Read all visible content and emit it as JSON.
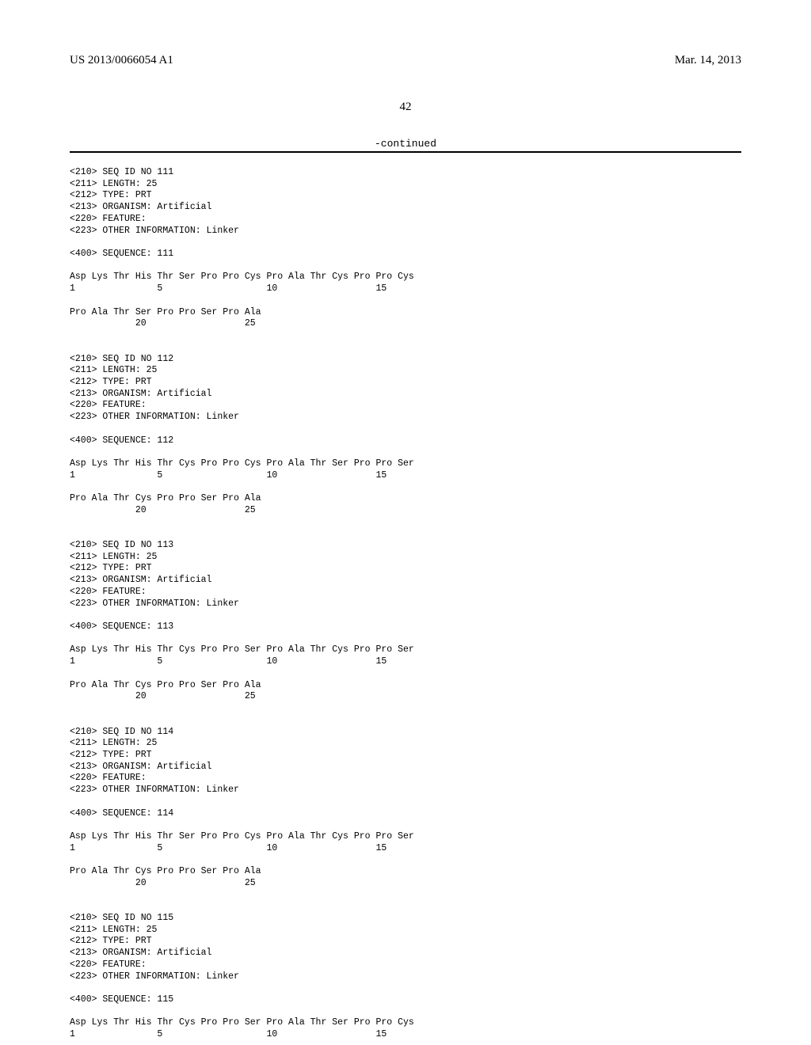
{
  "header": {
    "left": "US 2013/0066054 A1",
    "right": "Mar. 14, 2013"
  },
  "page_number": "42",
  "continued_label": "-continued",
  "sequences": [
    {
      "id": "111",
      "length": "25",
      "type": "PRT",
      "organism": "Artificial",
      "feature": "",
      "other_info": "Linker",
      "seq_no_line": "<400> SEQUENCE: 111",
      "lines": [
        "Asp Lys Thr His Thr Ser Pro Pro Cys Pro Ala Thr Cys Pro Pro Cys",
        "1               5                   10                  15",
        "",
        "Pro Ala Thr Ser Pro Pro Ser Pro Ala",
        "            20                  25"
      ]
    },
    {
      "id": "112",
      "length": "25",
      "type": "PRT",
      "organism": "Artificial",
      "feature": "",
      "other_info": "Linker",
      "seq_no_line": "<400> SEQUENCE: 112",
      "lines": [
        "Asp Lys Thr His Thr Cys Pro Pro Cys Pro Ala Thr Ser Pro Pro Ser",
        "1               5                   10                  15",
        "",
        "Pro Ala Thr Cys Pro Pro Ser Pro Ala",
        "            20                  25"
      ]
    },
    {
      "id": "113",
      "length": "25",
      "type": "PRT",
      "organism": "Artificial",
      "feature": "",
      "other_info": "Linker",
      "seq_no_line": "<400> SEQUENCE: 113",
      "lines": [
        "Asp Lys Thr His Thr Cys Pro Pro Ser Pro Ala Thr Cys Pro Pro Ser",
        "1               5                   10                  15",
        "",
        "Pro Ala Thr Cys Pro Pro Ser Pro Ala",
        "            20                  25"
      ]
    },
    {
      "id": "114",
      "length": "25",
      "type": "PRT",
      "organism": "Artificial",
      "feature": "",
      "other_info": "Linker",
      "seq_no_line": "<400> SEQUENCE: 114",
      "lines": [
        "Asp Lys Thr His Thr Ser Pro Pro Cys Pro Ala Thr Cys Pro Pro Ser",
        "1               5                   10                  15",
        "",
        "Pro Ala Thr Cys Pro Pro Ser Pro Ala",
        "            20                  25"
      ]
    },
    {
      "id": "115",
      "length": "25",
      "type": "PRT",
      "organism": "Artificial",
      "feature": "",
      "other_info": "Linker",
      "seq_no_line": "<400> SEQUENCE: 115",
      "lines": [
        "Asp Lys Thr His Thr Cys Pro Pro Ser Pro Ala Thr Ser Pro Pro Cys",
        "1               5                   10                  15"
      ]
    }
  ],
  "labels": {
    "seq_id_prefix": "<210> SEQ ID NO ",
    "length_prefix": "<211> LENGTH: ",
    "type_prefix": "<212> TYPE: ",
    "organism_prefix": "<213> ORGANISM: ",
    "feature_prefix": "<220> FEATURE:",
    "other_info_prefix": "<223> OTHER INFORMATION: "
  }
}
